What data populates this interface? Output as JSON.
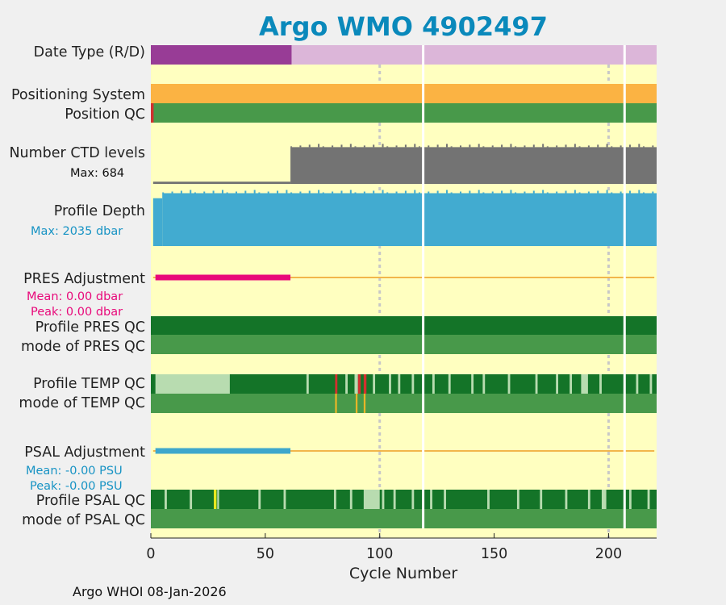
{
  "colors": {
    "bg": "#f0f0f0",
    "plot_bg": "#ffffc0",
    "title": "#0a89bb",
    "purple_dark": "#983c96",
    "purple_light": "#dcb6d9",
    "orange": "#fbb343",
    "green_med": "#48994a",
    "green_dark": "#147428",
    "green_light": "#b8dcb0",
    "red": "#d0312f",
    "gray": "#737373",
    "blue": "#42abd0",
    "magenta": "#e8097a",
    "gold": "#e8b528",
    "yellow_bright": "#e8e820",
    "grid": "#c8c8c8",
    "white": "#ffffff",
    "text": "#222222",
    "adj_line": "#f2b64b",
    "psal_adj_bar": "#3ea7cc",
    "mean_pres_text": "#e8097a",
    "mean_psal_text": "#1793c4",
    "max_depth_text": "#1793c4"
  },
  "chart_data": {
    "type": "table",
    "title": "Argo WMO 4902497",
    "xlabel": "Cycle Number",
    "xlim": [
      0,
      221
    ],
    "xticks": [
      0,
      50,
      100,
      150,
      200
    ],
    "grid_x": [
      100,
      200
    ],
    "gap_cycles": [
      119,
      207
    ],
    "rows": [
      {
        "label": "Date Type (R/D)",
        "segments": [
          {
            "from": 0,
            "to": 61.5,
            "color": "purple_dark"
          },
          {
            "from": 61.5,
            "to": 221,
            "color": "purple_light"
          }
        ]
      },
      {
        "label": "Positioning System",
        "segments": [
          {
            "from": 0,
            "to": 221,
            "color": "orange"
          }
        ]
      },
      {
        "label": "Position QC",
        "segments": [
          {
            "from": 0,
            "to": 221,
            "color": "green_med"
          },
          {
            "from": 0,
            "to": 1.2,
            "color": "red"
          }
        ]
      },
      {
        "label": "Number CTD levels",
        "note": "Max: 684",
        "max_value": 684,
        "levels": [
          {
            "from": 1,
            "to": 61,
            "value": 40
          },
          {
            "from": 61,
            "to": 221,
            "value": 650
          }
        ]
      },
      {
        "label": "Profile Depth",
        "note": "Max: 2035 dbar",
        "max_value": 2035,
        "levels": [
          {
            "from": 1,
            "to": 5,
            "value": 1800
          },
          {
            "from": 5,
            "to": 221,
            "value": 1990
          }
        ]
      },
      {
        "label": "PRES Adjustment",
        "mean": "Mean: 0.00 dbar",
        "peak": "Peak: 0.00 dbar",
        "bar_to": 61,
        "line_to": 220
      },
      {
        "label": "Profile PRES QC",
        "segments": [
          {
            "from": 0,
            "to": 221,
            "color": "green_dark"
          }
        ]
      },
      {
        "label": "mode of PRES QC",
        "segments": [
          {
            "from": 0,
            "to": 221,
            "color": "green_med"
          }
        ]
      },
      {
        "label": "Profile TEMP QC",
        "segments": [
          {
            "from": 0,
            "to": 221,
            "color": "green_dark"
          },
          {
            "from": 2,
            "to": 34.5,
            "color": "green_light"
          },
          {
            "from": 68,
            "to": 69,
            "color": "green_light"
          },
          {
            "from": 80.5,
            "to": 81.5,
            "color": "red"
          },
          {
            "from": 85,
            "to": 86,
            "color": "green_light"
          },
          {
            "from": 89,
            "to": 90.5,
            "color": "green_light"
          },
          {
            "from": 90.5,
            "to": 91.7,
            "color": "red"
          },
          {
            "from": 93,
            "to": 94.2,
            "color": "red"
          },
          {
            "from": 97,
            "to": 98,
            "color": "green_light"
          },
          {
            "from": 104,
            "to": 105,
            "color": "green_light"
          },
          {
            "from": 108,
            "to": 109,
            "color": "green_light"
          },
          {
            "from": 114,
            "to": 115,
            "color": "green_light"
          },
          {
            "from": 123,
            "to": 124,
            "color": "green_light"
          },
          {
            "from": 130,
            "to": 131,
            "color": "green_light"
          },
          {
            "from": 140,
            "to": 141,
            "color": "green_light"
          },
          {
            "from": 145,
            "to": 146,
            "color": "green_light"
          },
          {
            "from": 156,
            "to": 157,
            "color": "green_light"
          },
          {
            "from": 168,
            "to": 169,
            "color": "green_light"
          },
          {
            "from": 177,
            "to": 178,
            "color": "green_light"
          },
          {
            "from": 183,
            "to": 184,
            "color": "green_light"
          },
          {
            "from": 188,
            "to": 191,
            "color": "green_light"
          },
          {
            "from": 196,
            "to": 197,
            "color": "green_light"
          },
          {
            "from": 212,
            "to": 213,
            "color": "green_light"
          },
          {
            "from": 218,
            "to": 219,
            "color": "green_light"
          }
        ]
      },
      {
        "label": "mode of TEMP QC",
        "segments": [
          {
            "from": 0,
            "to": 221,
            "color": "green_med"
          },
          {
            "from": 80.5,
            "to": 81.3,
            "color": "gold"
          },
          {
            "from": 89.5,
            "to": 90.3,
            "color": "gold"
          },
          {
            "from": 93,
            "to": 93.8,
            "color": "gold"
          }
        ]
      },
      {
        "label": "PSAL Adjustment",
        "mean": "Mean: -0.00 PSU",
        "peak": "Peak: -0.00 PSU",
        "bar_to": 61,
        "line_to": 220
      },
      {
        "label": "Profile PSAL QC",
        "segments": [
          {
            "from": 0,
            "to": 221,
            "color": "green_dark"
          },
          {
            "from": 6,
            "to": 7,
            "color": "green_light"
          },
          {
            "from": 17,
            "to": 18,
            "color": "green_light"
          },
          {
            "from": 27.5,
            "to": 28.7,
            "color": "yellow_bright"
          },
          {
            "from": 29,
            "to": 29.8,
            "color": "green_light"
          },
          {
            "from": 47,
            "to": 48,
            "color": "green_light"
          },
          {
            "from": 58,
            "to": 59,
            "color": "green_light"
          },
          {
            "from": 80,
            "to": 81,
            "color": "green_light"
          },
          {
            "from": 87,
            "to": 88,
            "color": "green_light"
          },
          {
            "from": 93,
            "to": 100,
            "color": "green_light"
          },
          {
            "from": 101,
            "to": 102,
            "color": "green_light"
          },
          {
            "from": 106,
            "to": 107,
            "color": "green_light"
          },
          {
            "from": 114,
            "to": 115,
            "color": "green_light"
          },
          {
            "from": 122,
            "to": 123,
            "color": "green_light"
          },
          {
            "from": 128,
            "to": 129,
            "color": "green_light"
          },
          {
            "from": 147,
            "to": 148,
            "color": "green_light"
          },
          {
            "from": 160,
            "to": 161,
            "color": "green_light"
          },
          {
            "from": 170,
            "to": 171,
            "color": "green_light"
          },
          {
            "from": 181,
            "to": 182,
            "color": "green_light"
          },
          {
            "from": 191,
            "to": 192,
            "color": "green_light"
          },
          {
            "from": 197,
            "to": 199,
            "color": "green_light"
          },
          {
            "from": 209,
            "to": 210,
            "color": "green_light"
          },
          {
            "from": 217,
            "to": 218,
            "color": "green_light"
          }
        ]
      },
      {
        "label": "mode of PSAL QC",
        "segments": [
          {
            "from": 0,
            "to": 221,
            "color": "green_med"
          }
        ]
      }
    ]
  },
  "footer": "Argo WHOI 08-Jan-2026"
}
